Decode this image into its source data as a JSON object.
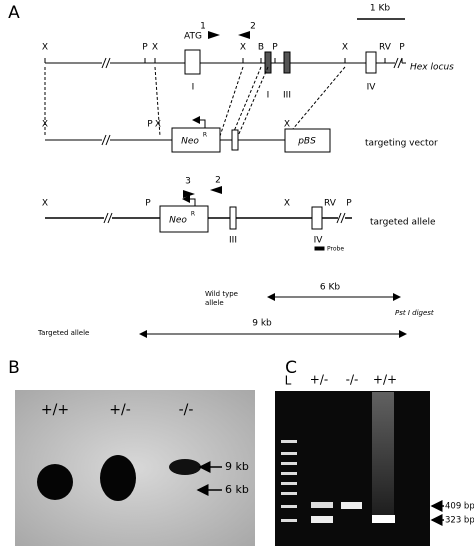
{
  "panel_a": {
    "label": "A",
    "scale": "1 Kb",
    "primers_top": [
      "1",
      "2"
    ],
    "hex_locus": {
      "sites": [
        "X",
        "P",
        "X",
        "X",
        "B",
        "P",
        "X",
        "RV",
        "P"
      ],
      "atg": "ATG",
      "name": "Hex locus",
      "exons": [
        "I",
        "I",
        "III",
        "IV"
      ]
    },
    "targeting_vector": {
      "sites": [
        "X",
        "P",
        "X",
        "X"
      ],
      "neo": "Neo",
      "neo_sup": "R",
      "pbs": "pBS",
      "name": "targeting vector"
    },
    "targeted_allele": {
      "sites": [
        "X",
        "P",
        "X",
        "RV",
        "P"
      ],
      "primers": [
        "3",
        "2"
      ],
      "neo": "Neo",
      "neo_sup": "R",
      "exons": [
        "III",
        "IV"
      ],
      "name": "targeted allele",
      "probe": "Probe"
    },
    "digest": {
      "wild_type": [
        "Wild type",
        "allele"
      ],
      "wt_size": "6 Kb",
      "enzyme": "Pst I digest",
      "targeted": "Targeted allele",
      "targeted_size": "9 kb"
    }
  },
  "panel_b": {
    "label": "B",
    "lanes": [
      "+/+",
      "+/-",
      "-/-"
    ],
    "markers": [
      "9 kb",
      "6 kb"
    ]
  },
  "panel_c": {
    "label": "C",
    "lanes": [
      "L",
      "+/-",
      "-/-",
      "+/+"
    ],
    "markers": [
      "409 bp",
      "323 bp"
    ]
  }
}
